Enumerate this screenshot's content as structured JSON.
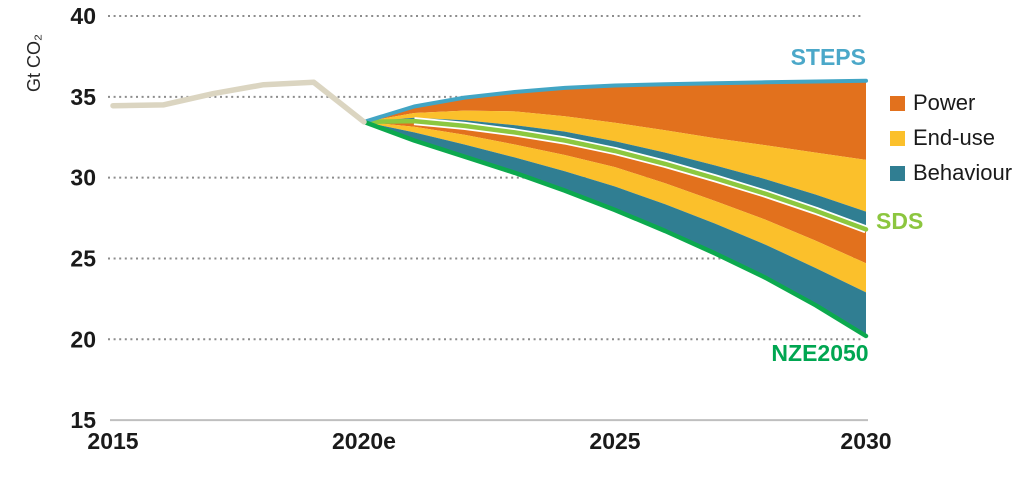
{
  "chart_data": {
    "type": "area",
    "title": "",
    "ylabel": "Gt CO₂",
    "xlabel": "",
    "ylim": [
      15,
      40
    ],
    "xlim": [
      2015,
      2030
    ],
    "grid": "dotted-horizontal",
    "grid_values": [
      40,
      35,
      30,
      25,
      20
    ],
    "y_ticks": [
      {
        "value": 40,
        "label": "40"
      },
      {
        "value": 35,
        "label": "35"
      },
      {
        "value": 30,
        "label": "30"
      },
      {
        "value": 25,
        "label": "25"
      },
      {
        "value": 20,
        "label": "20"
      },
      {
        "value": 15,
        "label": "15"
      }
    ],
    "x_ticks": [
      {
        "year": 2015,
        "label": "2015"
      },
      {
        "year": 2020,
        "label": "2020e"
      },
      {
        "year": 2025,
        "label": "2025"
      },
      {
        "year": 2030,
        "label": "2030"
      }
    ],
    "historical": {
      "name": "Historical emissions",
      "color": "#DBD5C1",
      "years": [
        2015,
        2016,
        2017,
        2018,
        2019,
        2020
      ],
      "values_gt": [
        34.45,
        34.5,
        35.2,
        35.75,
        35.9,
        33.45
      ]
    },
    "fan_years": [
      2020,
      2021,
      2022,
      2023,
      2024,
      2025,
      2026,
      2027,
      2028,
      2029,
      2030
    ],
    "series_gt": {
      "steps": [
        33.45,
        34.4,
        34.95,
        35.3,
        35.55,
        35.7,
        35.78,
        35.84,
        35.9,
        35.95,
        36.0
      ],
      "power_upper_bottom": [
        33.45,
        34.0,
        34.15,
        34.1,
        33.8,
        33.4,
        32.93,
        32.44,
        32.0,
        31.55,
        31.1
      ],
      "enduse_upper_bottom": [
        33.45,
        33.7,
        33.55,
        33.25,
        32.85,
        32.25,
        31.55,
        30.75,
        29.9,
        28.95,
        27.9
      ],
      "sds": [
        33.45,
        33.5,
        33.2,
        32.8,
        32.3,
        31.65,
        30.85,
        29.95,
        29.0,
        27.95,
        26.8
      ],
      "power_lower_bottom": [
        33.45,
        33.15,
        32.65,
        32.05,
        31.4,
        30.65,
        29.65,
        28.55,
        27.4,
        26.1,
        24.7
      ],
      "enduse_lower_bottom": [
        33.45,
        32.8,
        32.05,
        31.25,
        30.4,
        29.45,
        28.35,
        27.15,
        25.85,
        24.4,
        22.9
      ],
      "nze": [
        33.45,
        32.3,
        31.3,
        30.3,
        29.2,
        28.0,
        26.7,
        25.3,
        23.8,
        22.1,
        20.2
      ]
    },
    "areas": [
      {
        "name": "power-wedge-upper",
        "color": "#E2711D",
        "top": "steps",
        "bottom": "power_upper_bottom"
      },
      {
        "name": "enduse-wedge-upper",
        "color": "#FBC02B",
        "top": "power_upper_bottom",
        "bottom": "enduse_upper_bottom"
      },
      {
        "name": "behaviour-wedge-upper",
        "color": "#307E92",
        "top": "enduse_upper_bottom",
        "bottom": "sds"
      },
      {
        "name": "power-wedge-lower",
        "color": "#E2711D",
        "top": "sds",
        "bottom": "power_lower_bottom"
      },
      {
        "name": "enduse-wedge-lower",
        "color": "#FBC02B",
        "top": "power_lower_bottom",
        "bottom": "enduse_lower_bottom"
      },
      {
        "name": "behaviour-wedge-lower",
        "color": "#307E92",
        "top": "enduse_lower_bottom",
        "bottom": "nze"
      }
    ],
    "scenarios": {
      "steps": {
        "label": "STEPS",
        "line_color": "#42A5C4",
        "label_color": "#4BA8C9",
        "value_2030_gt": 36.0
      },
      "sds": {
        "label": "SDS",
        "line_color": "#8CC83F",
        "label_color": "#8CC63F",
        "value_2030_gt": 26.8
      },
      "nze": {
        "label": "NZE2050",
        "line_color": "#0CA94E",
        "label_color": "#00A651",
        "value_2030_gt": 20.2
      }
    },
    "legend": {
      "position": "right",
      "items": [
        {
          "label": "Power",
          "color": "#E2711D"
        },
        {
          "label": "End-use",
          "color": "#FBC02B"
        },
        {
          "label": "Behaviour",
          "color": "#307E92"
        }
      ]
    },
    "style": {
      "gridline_color": "#8C8C8C",
      "axis_line_color": "#BFBFBF",
      "tick_text_color": "#1a1a1a"
    }
  }
}
